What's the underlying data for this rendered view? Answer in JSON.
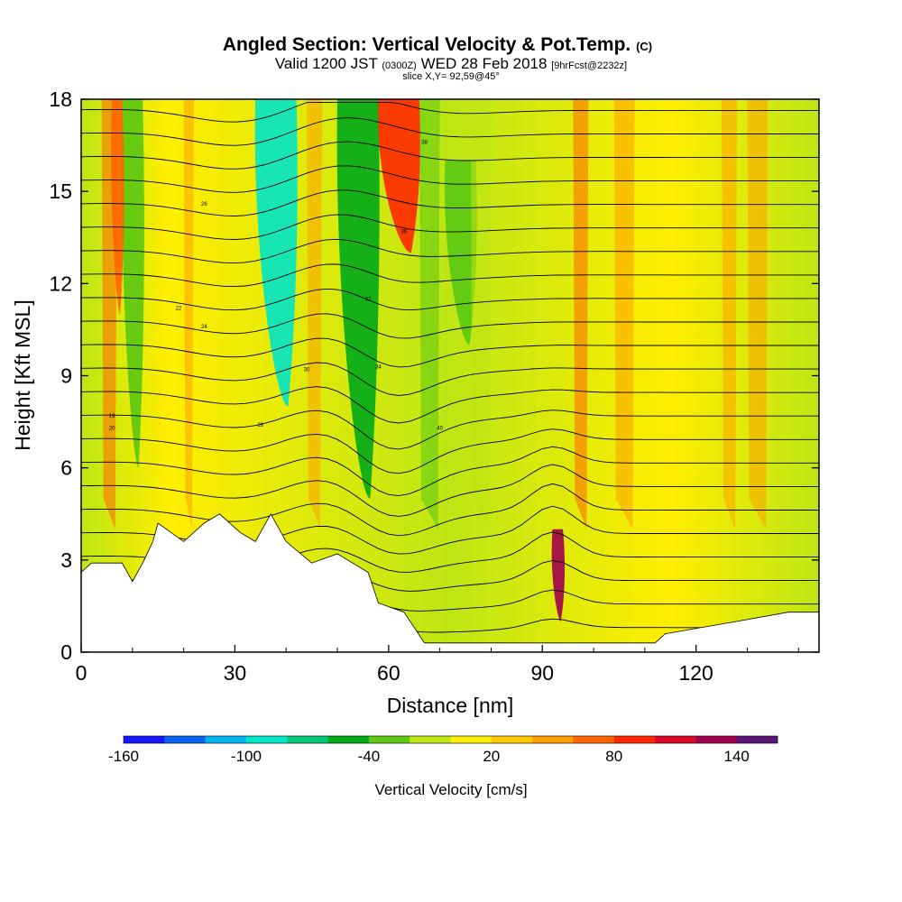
{
  "chart_data": {
    "type": "heatmap",
    "title": "Angled Section: Vertical Velocity & Pot.Temp.",
    "title_unit": "(C)",
    "subtitle_prefix": "Valid 1200 JST",
    "subtitle_utc": "(0300Z)",
    "subtitle_date": "WED 28 Feb 2018",
    "subtitle_forecast": "[9hrFcst@2232z]",
    "subtitle_slice": "slice X,Y= 92,59@45°",
    "xlabel": "Distance [nm]",
    "ylabel": "Height [Kft MSL]",
    "xlim": [
      0,
      144
    ],
    "ylim": [
      0,
      18
    ],
    "xticks": [
      0,
      30,
      60,
      90,
      120
    ],
    "yticks": [
      0,
      3,
      6,
      9,
      12,
      15,
      18
    ],
    "colorbar": {
      "label": "Vertical Velocity [cm/s]",
      "tick_labels": [
        "-160",
        "-100",
        "-40",
        "20",
        "80",
        "140"
      ],
      "tick_values": [
        -160,
        -100,
        -40,
        20,
        80,
        140
      ],
      "range": [
        -160,
        160
      ],
      "colors": [
        "#1616ff",
        "#0a64f0",
        "#00b4f0",
        "#00e6c8",
        "#00c878",
        "#00aa18",
        "#5ac814",
        "#bee614",
        "#ffee00",
        "#ffc800",
        "#ffa000",
        "#ff6400",
        "#ff2800",
        "#dc0a28",
        "#a0004b",
        "#5a1478"
      ]
    },
    "series": [
      {
        "name": "Vertical Velocity",
        "value_bands": [
          {
            "x": [
              0,
              144
            ],
            "z": [
              0,
              18
            ],
            "value": 20
          },
          {
            "x": [
              8,
              12
            ],
            "z": [
              6,
              18
            ],
            "value": -40
          },
          {
            "x": [
              34,
              42
            ],
            "z": [
              8,
              18
            ],
            "value": -100
          },
          {
            "x": [
              50,
              58
            ],
            "z": [
              5,
              18
            ],
            "value": -60
          },
          {
            "x": [
              58,
              66
            ],
            "z": [
              13,
              18
            ],
            "value": 90
          },
          {
            "x": [
              71,
              77
            ],
            "z": [
              10,
              16
            ],
            "value": -40
          },
          {
            "x": [
              6,
              8
            ],
            "z": [
              11,
              18
            ],
            "value": 60
          },
          {
            "x": [
              92,
              94
            ],
            "z": [
              1,
              4
            ],
            "value": 120
          }
        ]
      },
      {
        "name": "Pot.Temp.",
        "levels": [
          2,
          4,
          6,
          8,
          10,
          12,
          14,
          16,
          18,
          20,
          22,
          24,
          26,
          28,
          30,
          32,
          34,
          36,
          38,
          40,
          42,
          44,
          46
        ],
        "label_examples": [
          "19",
          "20",
          "22",
          "24",
          "26",
          "28",
          "30",
          "32",
          "34",
          "36",
          "38",
          "40"
        ]
      }
    ],
    "terrain_kft": [
      {
        "x": 0,
        "z": 2.6
      },
      {
        "x": 2,
        "z": 2.9
      },
      {
        "x": 8,
        "z": 2.9
      },
      {
        "x": 10,
        "z": 2.3
      },
      {
        "x": 12,
        "z": 2.9
      },
      {
        "x": 14,
        "z": 3.6
      },
      {
        "x": 15,
        "z": 4.2
      },
      {
        "x": 20,
        "z": 3.6
      },
      {
        "x": 24,
        "z": 4.2
      },
      {
        "x": 27,
        "z": 4.5
      },
      {
        "x": 31,
        "z": 3.9
      },
      {
        "x": 34,
        "z": 3.6
      },
      {
        "x": 37,
        "z": 4.5
      },
      {
        "x": 40,
        "z": 3.6
      },
      {
        "x": 45,
        "z": 2.9
      },
      {
        "x": 50,
        "z": 3.2
      },
      {
        "x": 56,
        "z": 2.6
      },
      {
        "x": 58,
        "z": 1.6
      },
      {
        "x": 63,
        "z": 1.3
      },
      {
        "x": 67,
        "z": 0.3
      },
      {
        "x": 90,
        "z": 0.3
      },
      {
        "x": 112,
        "z": 0.3
      },
      {
        "x": 114,
        "z": 0.6
      },
      {
        "x": 128,
        "z": 1.0
      },
      {
        "x": 138,
        "z": 1.3
      },
      {
        "x": 144,
        "z": 1.3
      }
    ]
  }
}
